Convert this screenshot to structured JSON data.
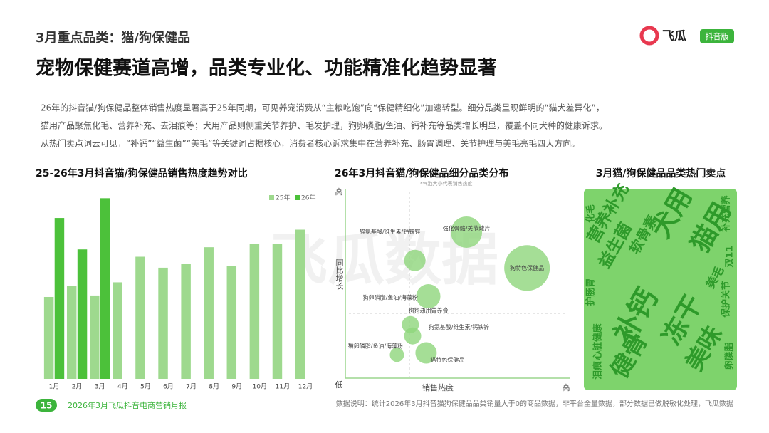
{
  "header": {
    "section": "3月重点品类：猫/狗保健品",
    "title": "宠物保健赛道高增，品类专业化、功能精准化趋势显著",
    "logo": "飞瓜",
    "badge": "抖音版"
  },
  "intro": [
    "26年的抖音猫/狗保健品整体销售热度显著高于25年同期，可见养宠消费从“主粮吃饱”向“保健精细化”加速转型。细分品类呈现鲜明的“猫犬差异化”，",
    "猫用产品聚焦化毛、营养补充、去泪痕等；犬用产品则侧重关节养护、毛发护理，狗卵磷脂/鱼油、钙补充等品类增长明显，覆盖不同犬种的健康诉求。",
    "从热门卖点词云可见，“补钙”“益生菌”“美毛”等关键词占据核心，消费者核心诉求集中在营养补充、肠胃调理、关节护理与美毛亮毛四大方向。"
  ],
  "watermark": "飞瓜数据",
  "chart_data": [
    {
      "type": "bar",
      "title": "25-26年3月抖音猫/狗保健品销售热度趋势对比",
      "categories": [
        "1月",
        "2月",
        "3月",
        "4月",
        "5月",
        "6月",
        "7月",
        "8月",
        "9月",
        "10月",
        "11月",
        "12月"
      ],
      "series": [
        {
          "name": "25年",
          "color": "#9ed98e",
          "values": [
            112,
            127,
            114,
            132,
            167,
            152,
            157,
            180,
            154,
            185,
            185,
            204
          ]
        },
        {
          "name": "26年",
          "color": "#4cc13a",
          "values": [
            220,
            177,
            247,
            null,
            null,
            null,
            null,
            null,
            null,
            null,
            null,
            null
          ]
        }
      ],
      "ylim": [
        0,
        260
      ],
      "legend": "top-right"
    },
    {
      "type": "bubble",
      "title": "26年3月抖音猫/狗保健品细分品类分布",
      "note": "*气泡大小代表销售热度",
      "y_label": "同比增长",
      "x_label": "销售热度",
      "y_high": "高",
      "y_low": "低",
      "x_high": "高",
      "xlim": [
        0,
        100
      ],
      "ylim": [
        0,
        100
      ],
      "color": "#8fd67c",
      "points": [
        {
          "label": "猫氨基酸/维生素/钙铁锌",
          "x": 31,
          "y": 62,
          "size": 15
        },
        {
          "label": "强化骨骼/关节球片",
          "x": 54,
          "y": 77,
          "size": 22
        },
        {
          "label": "狗特色保健品",
          "x": 81,
          "y": 58,
          "size": 32
        },
        {
          "label": "狗狗通用营养膏",
          "x": 37,
          "y": 43,
          "size": 17
        },
        {
          "label": "狗卵磷脂/鱼油/海藻粉",
          "x": 29,
          "y": 28,
          "size": 12
        },
        {
          "label": "狗氨基酸/维生素/钙铁锌",
          "x": 30,
          "y": 22,
          "size": 12
        },
        {
          "label": "猫卵磷脂/鱼油/海藻粉",
          "x": 23,
          "y": 12,
          "size": 10
        },
        {
          "label": "猫特色保健品",
          "x": 36,
          "y": 13,
          "size": 15
        }
      ]
    },
    {
      "type": "wordcloud",
      "title": "3月猫/狗保健品品类热门卖点",
      "color": "#2e9a2a",
      "background": "#7ed36c",
      "words": [
        {
          "text": "补钙",
          "weight": 10
        },
        {
          "text": "犬用",
          "weight": 9
        },
        {
          "text": "猫用",
          "weight": 9
        },
        {
          "text": "冻干",
          "weight": 9
        },
        {
          "text": "健骨",
          "weight": 8
        },
        {
          "text": "美味",
          "weight": 8
        },
        {
          "text": "营养补充",
          "weight": 5
        },
        {
          "text": "益生菌",
          "weight": 5
        },
        {
          "text": "软骨素",
          "weight": 4
        },
        {
          "text": "心脏健康",
          "weight": 2
        },
        {
          "text": "保护关节",
          "weight": 2
        },
        {
          "text": "美毛",
          "weight": 3
        },
        {
          "text": "护肠胃",
          "weight": 2
        },
        {
          "text": "补充营养",
          "weight": 2
        },
        {
          "text": "泪痕",
          "weight": 2
        },
        {
          "text": "卵磷脂",
          "weight": 2
        },
        {
          "text": "双11",
          "weight": 2
        },
        {
          "text": "化毛",
          "weight": 2
        }
      ]
    }
  ],
  "footer": {
    "page": "15",
    "report": "2026年3月飞瓜抖音电商营销月报",
    "note": "数据说明：统计2026年3月抖音猫狗保健品品类销量大于0的商品数据，非平台全量数据，部分数据已做脱敏化处理，飞瓜数据"
  }
}
